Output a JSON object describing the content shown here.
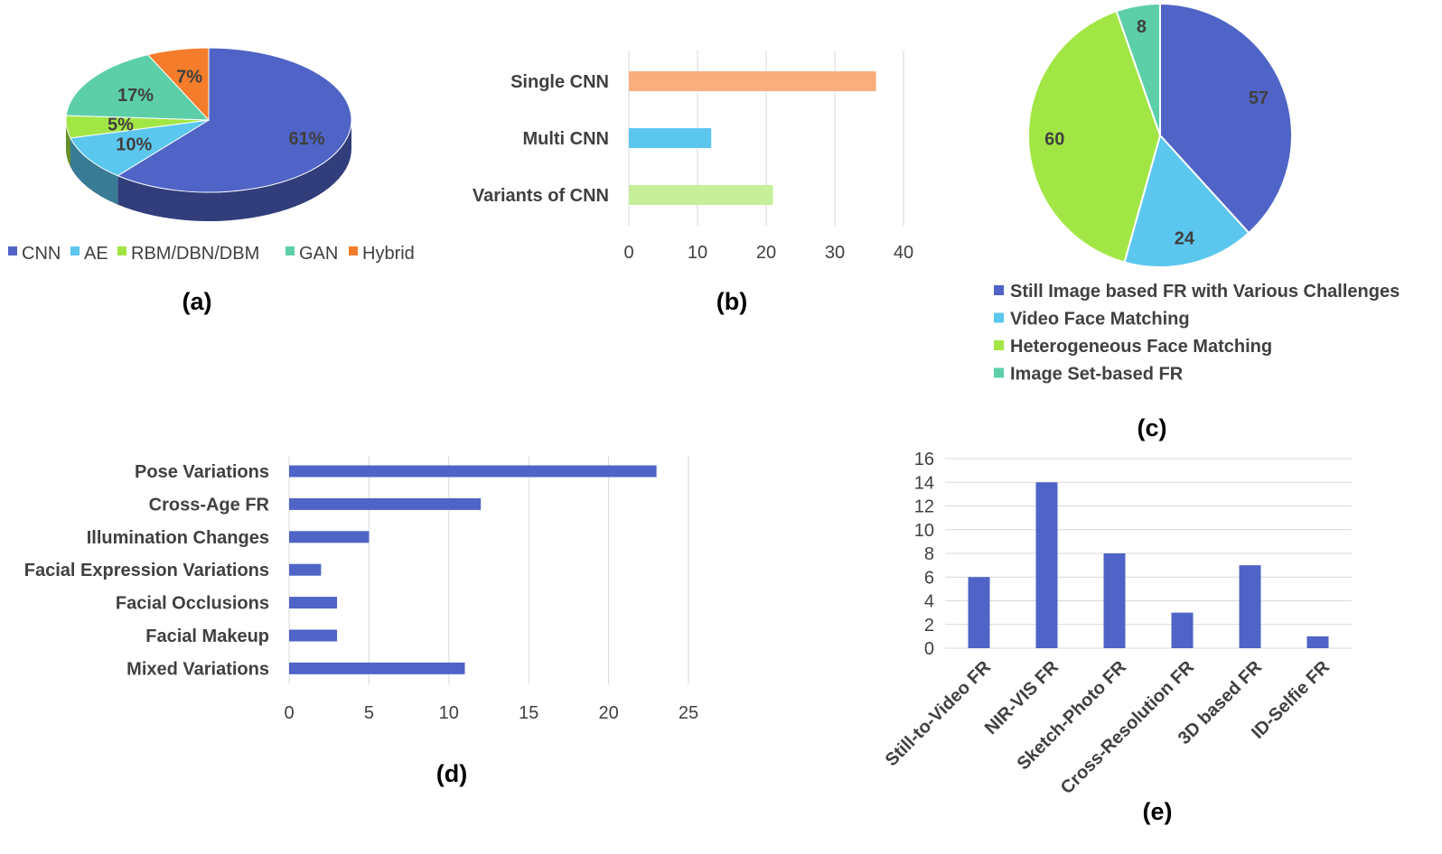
{
  "chart_data": [
    {
      "id": "a",
      "type": "pie",
      "caption": "(a)",
      "three_d": true,
      "labels": [
        "CNN",
        "AE",
        "RBM/DBN/DBM",
        "GAN",
        "Hybrid"
      ],
      "values": [
        61,
        10,
        5,
        17,
        7
      ],
      "value_labels": [
        "61%",
        "10%",
        "5%",
        "17%",
        "7%"
      ],
      "colors": [
        "#4F64C6",
        "#5BC7EE",
        "#A2E645",
        "#5CCFA9",
        "#F47C2A"
      ],
      "legend_position": "bottom"
    },
    {
      "id": "b",
      "type": "bar",
      "orientation": "horizontal",
      "caption": "(b)",
      "categories": [
        "Single CNN",
        "Multi CNN",
        "Variants of CNN"
      ],
      "values": [
        36,
        12,
        21
      ],
      "colors": [
        "#F9AE7E",
        "#5BC7EE",
        "#C6EF9A"
      ],
      "xlim": [
        0,
        40
      ],
      "xticks": [
        "0",
        "10",
        "20",
        "30",
        "40"
      ],
      "grid": true
    },
    {
      "id": "c",
      "type": "pie",
      "caption": "(c)",
      "labels": [
        "Still Image based FR with Various Challenges",
        "Video Face Matching",
        "Heterogeneous Face Matching",
        "Image Set-based FR"
      ],
      "values": [
        57,
        24,
        60,
        8
      ],
      "value_labels": [
        "57",
        "24",
        "60",
        "8"
      ],
      "colors": [
        "#4F64C6",
        "#5BC7EE",
        "#A2E645",
        "#5CCFA9"
      ],
      "legend_position": "bottom"
    },
    {
      "id": "d",
      "type": "bar",
      "orientation": "horizontal",
      "caption": "(d)",
      "categories": [
        "Pose Variations",
        "Cross-Age FR",
        "Illumination Changes",
        "Facial Expression Variations",
        "Facial Occlusions",
        "Facial Makeup",
        "Mixed Variations"
      ],
      "values": [
        23,
        12,
        5,
        2,
        3,
        3,
        11
      ],
      "color": "#4F64C6",
      "xlim": [
        0,
        25
      ],
      "xticks": [
        "0",
        "5",
        "10",
        "15",
        "20",
        "25"
      ],
      "grid": true
    },
    {
      "id": "e",
      "type": "bar",
      "orientation": "vertical",
      "caption": "(e)",
      "categories": [
        "Still-to-Video FR",
        "NIR-VIS FR",
        "Sketch-Photo FR",
        "Cross-Resolution FR",
        "3D based FR",
        "ID-Selfie FR"
      ],
      "values": [
        6,
        14,
        8,
        3,
        7,
        1
      ],
      "color": "#4F64C6",
      "ylim": [
        0,
        16
      ],
      "yticks": [
        "0",
        "2",
        "4",
        "6",
        "8",
        "10",
        "12",
        "14",
        "16"
      ],
      "grid": true
    }
  ]
}
